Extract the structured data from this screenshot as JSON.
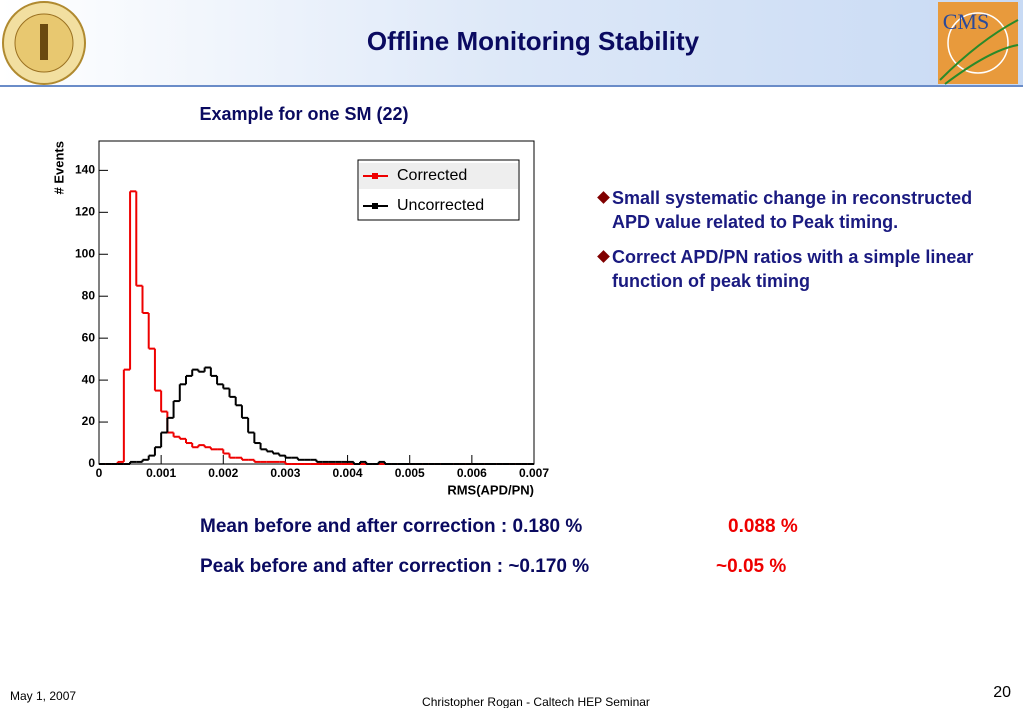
{
  "slide": {
    "title": "Offline Monitoring Stability",
    "subtitle": "Example for one SM (22)",
    "logo_text": "CMS",
    "bullets": [
      "Small systematic change in reconstructed APD value related to Peak timing.",
      "Correct APD/PN ratios with a simple linear function of peak timing"
    ],
    "mean_text": "Mean before and after correction :  0.180 %",
    "mean_after": "0.088 %",
    "peak_text": "Peak before and after correction : ~0.170 %",
    "peak_after": "~0.05 %",
    "date": "May 1, 2007",
    "author": "Christopher Rogan - Caltech HEP Seminar",
    "page_number": "20"
  },
  "chart_data": {
    "type": "histogram",
    "x_label": "RMS(APD/PN)",
    "y_label": "# Events",
    "bins": [
      0,
      0.0001,
      0.0002,
      0.0003,
      0.0004,
      0.0005,
      0.0006,
      0.0007,
      0.0008,
      0.0009,
      0.001,
      0.0011,
      0.0012,
      0.0013,
      0.0014,
      0.0015,
      0.0016,
      0.0017,
      0.0018,
      0.0019,
      0.002,
      0.0021,
      0.0022,
      0.0023,
      0.0024,
      0.0025,
      0.0026,
      0.0027,
      0.0028,
      0.0029,
      0.003,
      0.0031,
      0.0032,
      0.0033,
      0.0034,
      0.0035,
      0.0036,
      0.0037,
      0.0038,
      0.0039,
      0.004,
      0.0041,
      0.0042,
      0.0043,
      0.0044,
      0.0045,
      0.0046,
      0.0047,
      0.0048,
      0.0049,
      0.005,
      0.0051,
      0.0052,
      0.0053,
      0.0054,
      0.0055,
      0.0056,
      0.0057,
      0.0058,
      0.0059,
      0.006,
      0.0061,
      0.0062,
      0.0063,
      0.0064,
      0.0065,
      0.0066,
      0.0067,
      0.0068,
      0.0069,
      0.007
    ],
    "series": [
      {
        "name": "Corrected",
        "color": "#ee0000",
        "values": [
          0,
          0,
          0,
          1,
          45,
          130,
          85,
          72,
          55,
          35,
          25,
          15,
          13,
          12,
          10,
          8,
          9,
          8,
          7,
          7,
          5,
          3,
          3,
          2,
          2,
          1,
          1,
          1,
          1,
          1,
          0,
          0,
          0,
          0,
          0,
          0,
          0,
          0,
          0,
          0,
          0,
          0,
          0,
          0,
          0,
          0,
          0,
          0,
          0,
          0,
          0,
          0,
          0,
          0,
          0,
          0,
          0,
          0,
          0,
          0,
          0,
          0,
          0,
          0,
          0,
          0,
          0,
          0,
          0,
          0
        ]
      },
      {
        "name": "Uncorrected",
        "color": "#000000",
        "values": [
          0,
          0,
          0,
          0,
          0,
          1,
          1,
          2,
          4,
          8,
          15,
          22,
          30,
          38,
          42,
          45,
          44,
          46,
          42,
          38,
          36,
          32,
          28,
          22,
          15,
          10,
          7,
          6,
          5,
          4,
          3,
          3,
          2,
          2,
          2,
          1,
          1,
          1,
          1,
          1,
          1,
          0,
          1,
          0,
          0,
          1,
          0,
          0,
          0,
          0,
          0,
          0,
          0,
          0,
          0,
          0,
          0,
          0,
          0,
          0,
          0,
          0,
          0,
          0,
          0,
          0,
          0,
          0,
          0,
          0
        ]
      }
    ],
    "xlim": [
      0,
      0.007
    ],
    "xticks": [
      0,
      0.001,
      0.002,
      0.003,
      0.004,
      0.005,
      0.006,
      0.007
    ],
    "ylim": [
      0,
      154
    ],
    "yticks": [
      0,
      20,
      40,
      60,
      80,
      100,
      120,
      140
    ],
    "legend": "top-right"
  }
}
